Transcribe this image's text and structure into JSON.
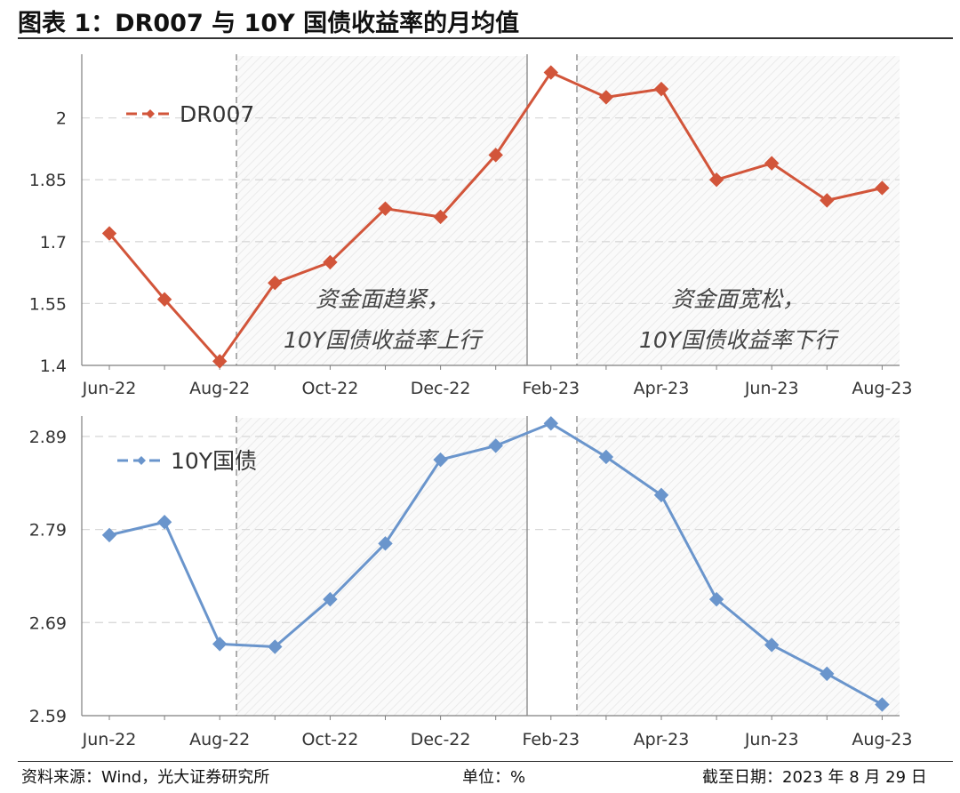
{
  "header": {
    "title": "图表 1：DR007 与 10Y 国债收益率的月均值"
  },
  "footer": {
    "source": "资料来源：Wind，光大证券研究所",
    "unit": "单位：%",
    "date": "截至日期：2023 年 8 月 29 日"
  },
  "annotations": {
    "tight": [
      "资金面趋紧，",
      "10Y国债收益率上行"
    ],
    "loose": [
      "资金面宽松，",
      "10Y国债收益率下行"
    ]
  },
  "colors": {
    "dr007": "#D2553A",
    "bond": "#6A95CC",
    "grid": "#d9d9d9",
    "axis": "#7f7f7f",
    "divider": "#8c8c8c"
  },
  "chart_data": [
    {
      "type": "line",
      "x": [
        "Jun-22",
        "Jul-22",
        "Aug-22",
        "Sep-22",
        "Oct-22",
        "Nov-22",
        "Dec-22",
        "Jan-23",
        "Feb-23",
        "Mar-23",
        "Apr-23",
        "May-23",
        "Jun-23",
        "Jul-23",
        "Aug-23"
      ],
      "tick_labels": [
        "Jun-22",
        "Aug-22",
        "Oct-22",
        "Dec-22",
        "Feb-23",
        "Apr-23",
        "Jun-23",
        "Aug-23"
      ],
      "yticks": [
        "1.4",
        "1.55",
        "1.7",
        "1.85",
        "2"
      ],
      "ylim": [
        1.4,
        2.15
      ],
      "series": [
        {
          "name": "DR007",
          "values": [
            1.72,
            1.56,
            1.41,
            1.6,
            1.65,
            1.78,
            1.76,
            1.91,
            2.11,
            2.05,
            2.07,
            1.85,
            1.89,
            1.8,
            1.83
          ]
        }
      ],
      "legend": "top-left",
      "grid": true
    },
    {
      "type": "line",
      "x": [
        "Jun-22",
        "Jul-22",
        "Aug-22",
        "Sep-22",
        "Oct-22",
        "Nov-22",
        "Dec-22",
        "Jan-23",
        "Feb-23",
        "Mar-23",
        "Apr-23",
        "May-23",
        "Jun-23",
        "Jul-23",
        "Aug-23"
      ],
      "tick_labels": [
        "Jun-22",
        "Aug-22",
        "Oct-22",
        "Dec-22",
        "Feb-23",
        "Apr-23",
        "Jun-23",
        "Aug-23"
      ],
      "yticks": [
        "2.59",
        "2.69",
        "2.79",
        "2.89"
      ],
      "ylim": [
        2.59,
        2.91
      ],
      "series": [
        {
          "name": "10Y国债",
          "values": [
            2.784,
            2.798,
            2.667,
            2.664,
            2.715,
            2.775,
            2.865,
            2.88,
            2.904,
            2.868,
            2.827,
            2.715,
            2.666,
            2.635,
            2.602
          ]
        }
      ],
      "legend": "top-left",
      "grid": true
    }
  ]
}
